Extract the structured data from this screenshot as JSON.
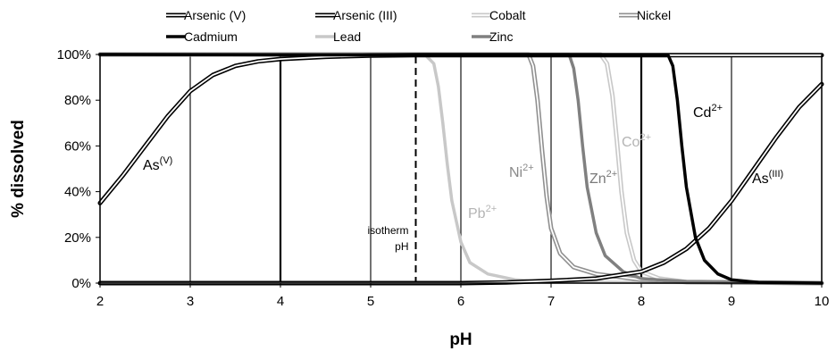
{
  "chart_data": {
    "type": "line",
    "xlabel": "pH",
    "ylabel": "% dissolved",
    "xlim": [
      2,
      10
    ],
    "ylim": [
      0,
      100
    ],
    "x_ticks": [
      "2",
      "3",
      "4",
      "5",
      "6",
      "7",
      "8",
      "9",
      "10"
    ],
    "y_ticks": [
      "0%",
      "20%",
      "40%",
      "60%",
      "80%",
      "100%"
    ],
    "grid": "vertical",
    "legend_position": "top",
    "series": [
      {
        "name": "Arsenic (V)",
        "color": "#000000",
        "style": "double",
        "x": [
          2.0,
          2.25,
          2.5,
          2.75,
          3.0,
          3.25,
          3.5,
          3.75,
          4.0,
          4.5,
          5.0,
          5.5,
          10.0
        ],
        "y": [
          35,
          47,
          60,
          73,
          84,
          91,
          95,
          97,
          98,
          99,
          99.5,
          99.7,
          99.7
        ]
      },
      {
        "name": "Arsenic (III)",
        "color": "#000000",
        "style": "double",
        "x": [
          2.0,
          6.0,
          6.5,
          7.0,
          7.5,
          8.0,
          8.25,
          8.5,
          8.75,
          9.0,
          9.25,
          9.5,
          9.75,
          10.0
        ],
        "y": [
          0,
          0,
          0.3,
          1,
          2,
          5,
          9,
          15,
          24,
          36,
          50,
          64,
          77,
          87
        ]
      },
      {
        "name": "Cobalt",
        "color": "#c8c8c8",
        "style": "double",
        "x": [
          2.0,
          7.55,
          7.62,
          7.68,
          7.73,
          7.78,
          7.84,
          7.92,
          8.0,
          8.2,
          8.5,
          10.0
        ],
        "y": [
          100,
          100,
          96,
          82,
          62,
          40,
          22,
          10,
          5,
          2,
          0.5,
          0
        ]
      },
      {
        "name": "Nickel",
        "color": "#909090",
        "style": "double",
        "x": [
          2.0,
          6.75,
          6.8,
          6.85,
          6.9,
          6.95,
          7.0,
          7.1,
          7.25,
          7.5,
          8.0,
          8.5,
          10.0
        ],
        "y": [
          100,
          100,
          95,
          80,
          58,
          38,
          24,
          13,
          7,
          4,
          1.5,
          0.5,
          0
        ]
      },
      {
        "name": "Cadmium",
        "color": "#000000",
        "style": "bold",
        "x": [
          2.0,
          8.3,
          8.35,
          8.4,
          8.45,
          8.5,
          8.6,
          8.7,
          8.85,
          9.0,
          9.3,
          10.0
        ],
        "y": [
          100,
          99.5,
          95,
          80,
          60,
          42,
          20,
          10,
          4,
          1.5,
          0.3,
          0
        ]
      },
      {
        "name": "Lead",
        "color": "#c8c8c8",
        "style": "bold",
        "x": [
          2.0,
          5.6,
          5.7,
          5.75,
          5.8,
          5.85,
          5.9,
          6.0,
          6.1,
          6.3,
          6.6,
          7.0,
          10.0
        ],
        "y": [
          100,
          100,
          96,
          86,
          70,
          52,
          36,
          18,
          9,
          4,
          1.5,
          0.5,
          0
        ]
      },
      {
        "name": "Zinc",
        "color": "#808080",
        "style": "bold",
        "x": [
          2.0,
          7.2,
          7.25,
          7.3,
          7.35,
          7.4,
          7.5,
          7.6,
          7.8,
          8.0,
          8.5,
          10.0
        ],
        "y": [
          100,
          100,
          94,
          80,
          60,
          42,
          22,
          12,
          5,
          2,
          0.5,
          0
        ]
      }
    ],
    "annotations": [
      {
        "base": "As",
        "sup": "(V)",
        "color": "#000000"
      },
      {
        "base": "Pb",
        "sup": "2+",
        "color": "#b4b4b4"
      },
      {
        "base": "Ni",
        "sup": "2+",
        "color": "#8a8a8a"
      },
      {
        "base": "Zn",
        "sup": "2+",
        "color": "#7a7a7a"
      },
      {
        "base": "Co",
        "sup": "2+",
        "color": "#b4b4b4"
      },
      {
        "base": "Cd",
        "sup": "2+",
        "color": "#000000"
      },
      {
        "base": "As",
        "sup": "(III)",
        "color": "#000000"
      }
    ],
    "isotherm": {
      "x": 5.5,
      "label_line1": "isotherm",
      "label_line2": "pH"
    }
  }
}
